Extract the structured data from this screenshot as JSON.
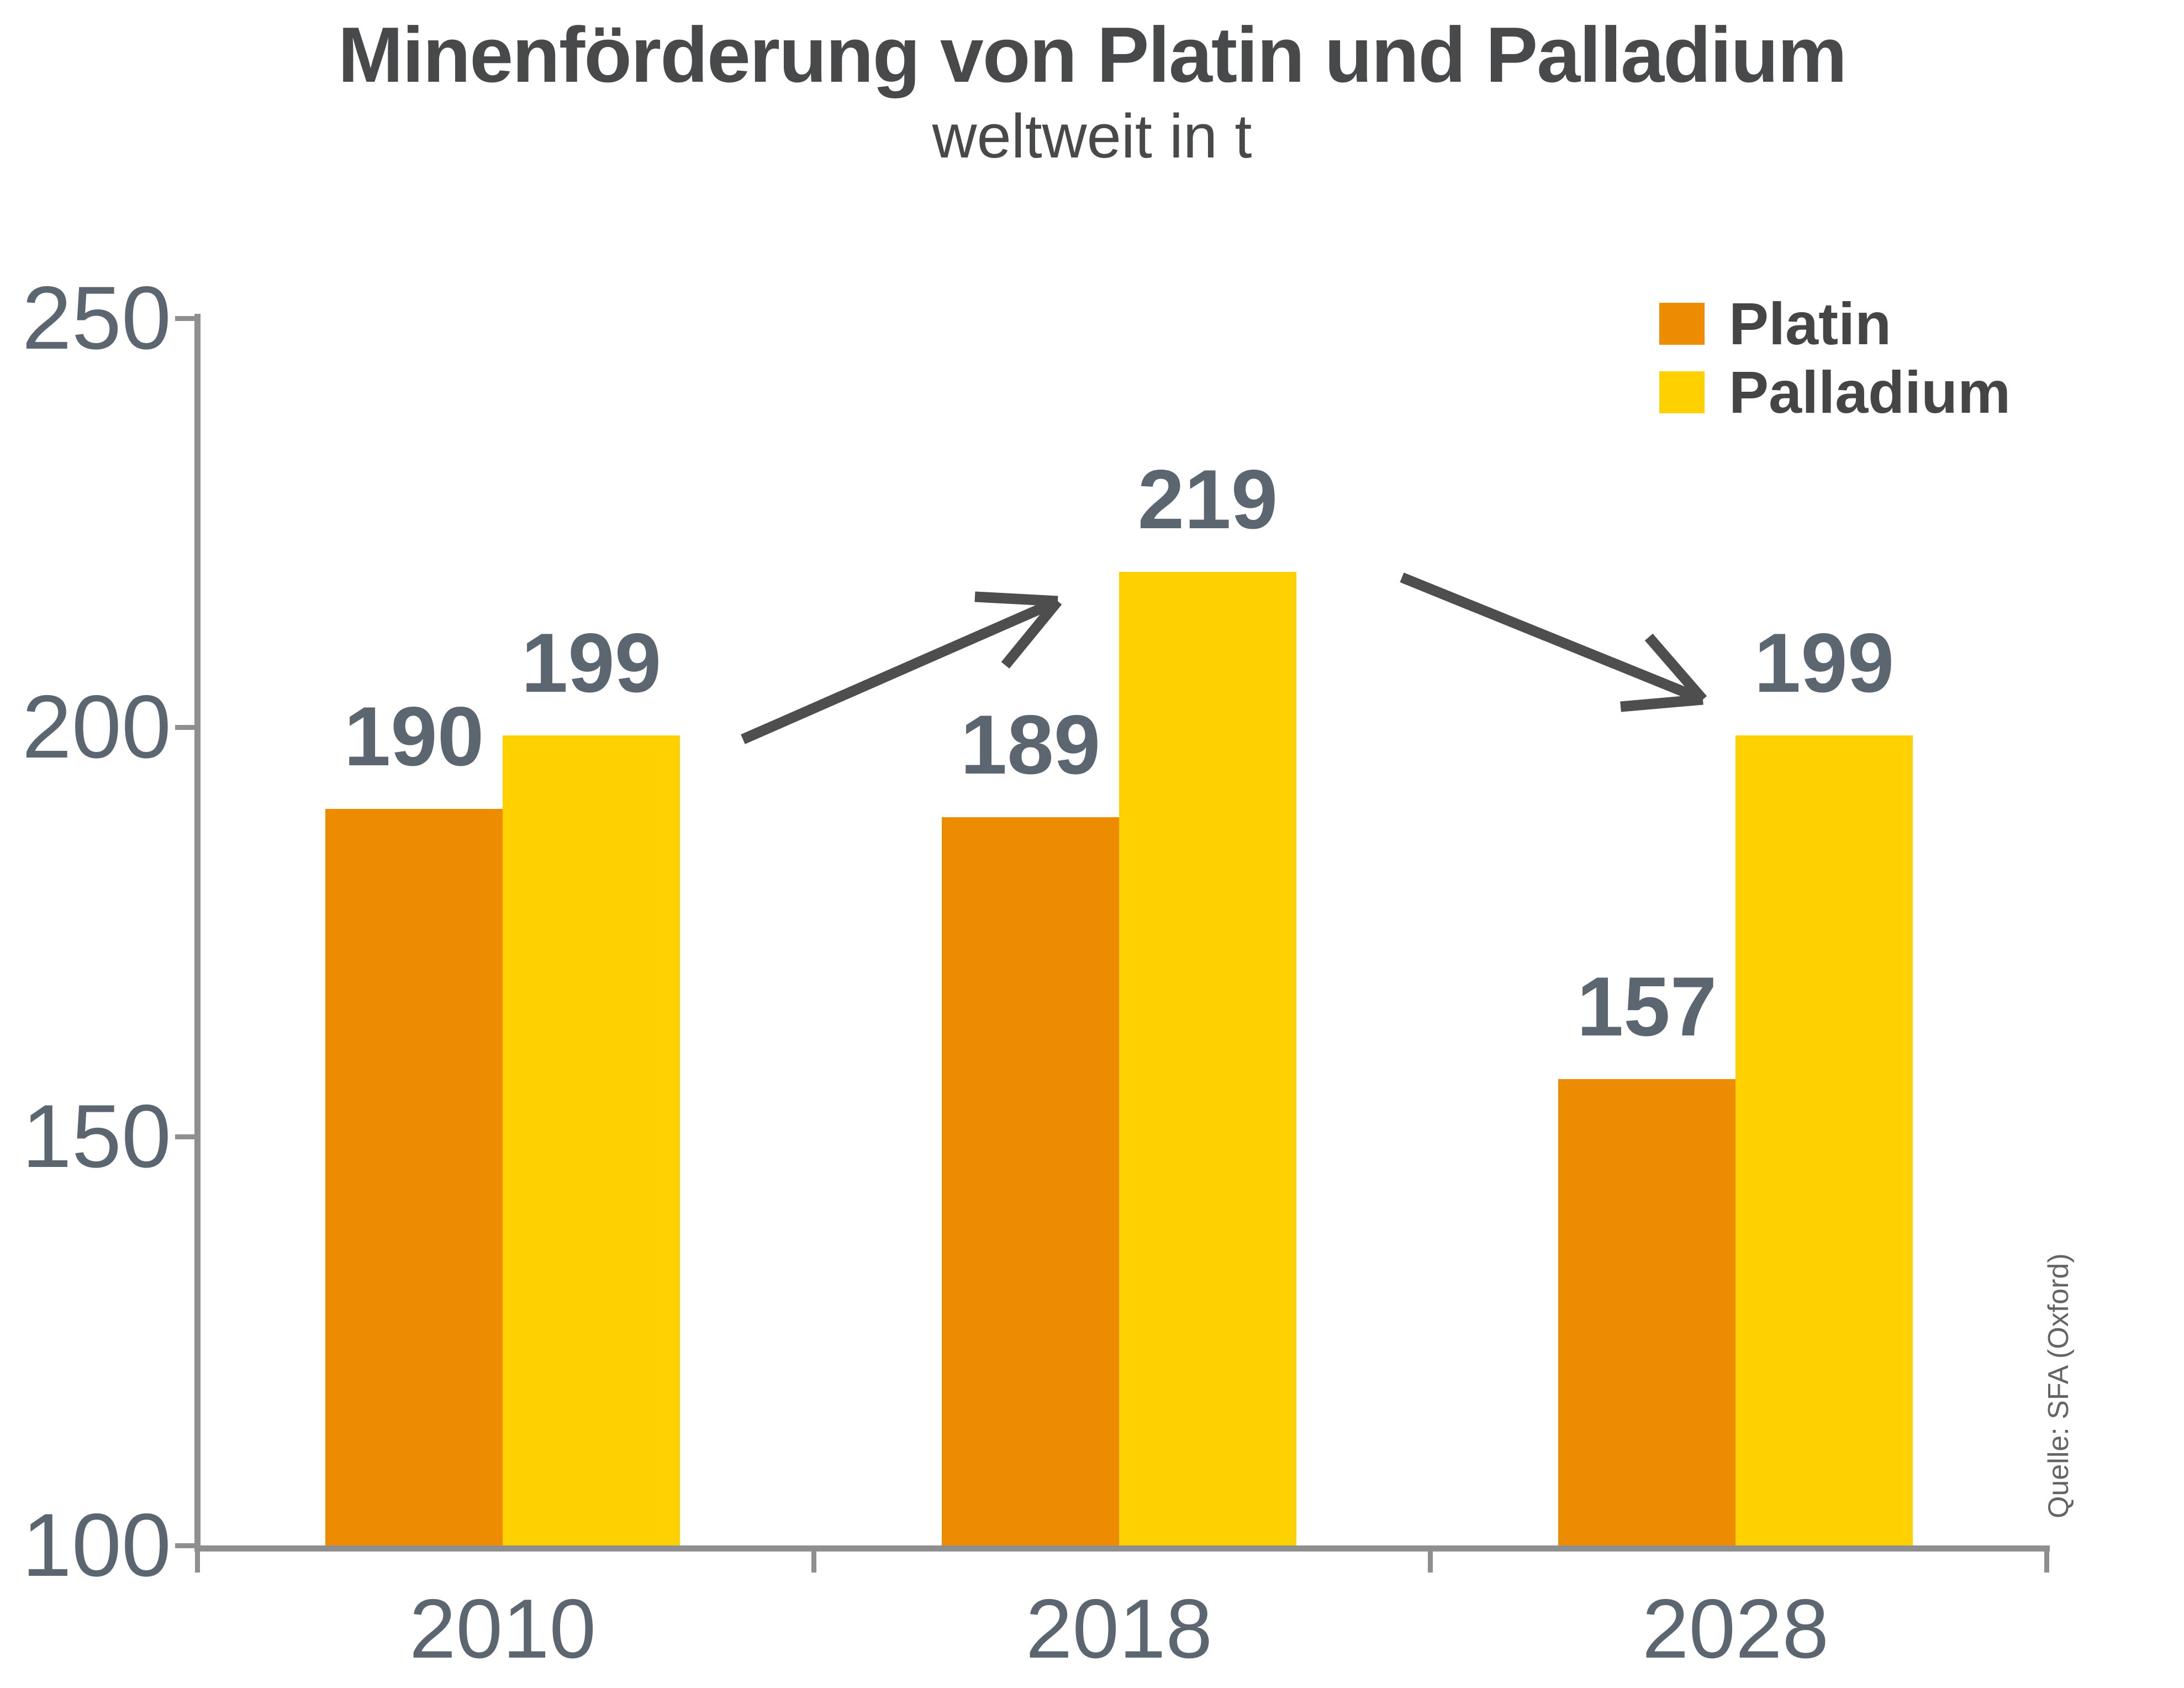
{
  "title": "Minenförderung von Platin und Palladium",
  "subtitle": "weltweit in t",
  "source": "Quelle: SFA (Oxford)",
  "legend": {
    "position": "top-right",
    "items": [
      {
        "label": "Platin",
        "color": "#EE8C00"
      },
      {
        "label": "Palladium",
        "color": "#FFD100"
      }
    ]
  },
  "chart_data": {
    "type": "bar",
    "categories": [
      "2010",
      "2018",
      "2028"
    ],
    "series": [
      {
        "name": "Platin",
        "color": "#EE8C00",
        "values": [
          190,
          189,
          157
        ]
      },
      {
        "name": "Palladium",
        "color": "#FFD100",
        "values": [
          199,
          219,
          199
        ]
      }
    ],
    "ylim": [
      100,
      250
    ],
    "yticks": [
      250,
      200,
      150,
      100
    ],
    "grid": false,
    "legend_position": "top-right",
    "value_labels": "above bars, bold gray",
    "annotations": [
      {
        "type": "arrow",
        "trend": "up",
        "from": "Palladium 2010 (199)",
        "to": "Palladium 2018 (219)"
      },
      {
        "type": "arrow",
        "trend": "down",
        "from": "Palladium 2018 (219)",
        "to": "Palladium 2028 (199)"
      }
    ]
  },
  "colors": {
    "platin": "#EE8C00",
    "palladium": "#FFD100",
    "axis": "#8F8F8F",
    "labels": "#5B6670",
    "title_text": "#48494B",
    "legend_text": "#454545",
    "arrow": "#4E4E4E",
    "source_text": "#636466",
    "background": "#FFFFFF"
  }
}
